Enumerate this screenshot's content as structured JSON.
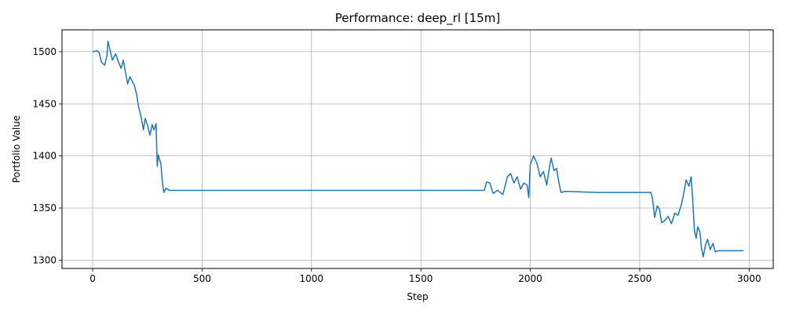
{
  "chart_data": {
    "type": "line",
    "title": "Performance: deep_rl [15m]",
    "xlabel": "Step",
    "ylabel": "Portfolio Value",
    "xlim": [
      -140,
      3110
    ],
    "ylim": [
      1292,
      1521
    ],
    "x_ticks": [
      0,
      500,
      1000,
      1500,
      2000,
      2500,
      3000
    ],
    "y_ticks": [
      1300,
      1350,
      1400,
      1450,
      1500
    ],
    "grid": true,
    "legend": "none",
    "colors": {
      "line": "#1f77b4",
      "grid": "#b0b0b0"
    },
    "series": [
      {
        "points": [
          [
            0,
            1500
          ],
          [
            20,
            1501
          ],
          [
            30,
            1499
          ],
          [
            40,
            1490
          ],
          [
            55,
            1487
          ],
          [
            65,
            1496
          ],
          [
            70,
            1510
          ],
          [
            78,
            1503
          ],
          [
            90,
            1492
          ],
          [
            105,
            1498
          ],
          [
            118,
            1490
          ],
          [
            130,
            1484
          ],
          [
            140,
            1492
          ],
          [
            150,
            1480
          ],
          [
            160,
            1469
          ],
          [
            170,
            1476
          ],
          [
            180,
            1472
          ],
          [
            190,
            1468
          ],
          [
            200,
            1460
          ],
          [
            210,
            1447
          ],
          [
            222,
            1437
          ],
          [
            232,
            1425
          ],
          [
            240,
            1436
          ],
          [
            250,
            1430
          ],
          [
            262,
            1420
          ],
          [
            272,
            1430
          ],
          [
            280,
            1425
          ],
          [
            290,
            1431
          ],
          [
            295,
            1390
          ],
          [
            300,
            1401
          ],
          [
            312,
            1392
          ],
          [
            318,
            1376
          ],
          [
            325,
            1365
          ],
          [
            335,
            1369
          ],
          [
            350,
            1367
          ],
          [
            400,
            1367
          ],
          [
            1000,
            1367
          ],
          [
            1600,
            1367
          ],
          [
            1790,
            1367
          ],
          [
            1800,
            1375
          ],
          [
            1815,
            1374
          ],
          [
            1830,
            1364
          ],
          [
            1850,
            1367
          ],
          [
            1875,
            1363
          ],
          [
            1895,
            1380
          ],
          [
            1910,
            1383
          ],
          [
            1925,
            1374
          ],
          [
            1940,
            1380
          ],
          [
            1955,
            1368
          ],
          [
            1970,
            1374
          ],
          [
            1985,
            1372
          ],
          [
            1993,
            1360
          ],
          [
            2000,
            1392
          ],
          [
            2015,
            1400
          ],
          [
            2030,
            1393
          ],
          [
            2045,
            1380
          ],
          [
            2060,
            1385
          ],
          [
            2075,
            1372
          ],
          [
            2085,
            1386
          ],
          [
            2095,
            1398
          ],
          [
            2108,
            1386
          ],
          [
            2120,
            1388
          ],
          [
            2130,
            1375
          ],
          [
            2140,
            1365
          ],
          [
            2160,
            1366
          ],
          [
            2300,
            1365
          ],
          [
            2550,
            1365
          ],
          [
            2558,
            1360
          ],
          [
            2568,
            1341
          ],
          [
            2580,
            1352
          ],
          [
            2590,
            1349
          ],
          [
            2600,
            1336
          ],
          [
            2615,
            1338
          ],
          [
            2630,
            1342
          ],
          [
            2645,
            1335
          ],
          [
            2660,
            1345
          ],
          [
            2675,
            1343
          ],
          [
            2690,
            1353
          ],
          [
            2700,
            1363
          ],
          [
            2712,
            1377
          ],
          [
            2725,
            1371
          ],
          [
            2735,
            1380
          ],
          [
            2742,
            1358
          ],
          [
            2750,
            1328
          ],
          [
            2758,
            1321
          ],
          [
            2765,
            1332
          ],
          [
            2775,
            1327
          ],
          [
            2782,
            1312
          ],
          [
            2790,
            1303
          ],
          [
            2800,
            1314
          ],
          [
            2810,
            1320
          ],
          [
            2822,
            1310
          ],
          [
            2835,
            1316
          ],
          [
            2845,
            1308
          ],
          [
            2860,
            1309
          ],
          [
            2975,
            1309
          ]
        ]
      }
    ]
  }
}
